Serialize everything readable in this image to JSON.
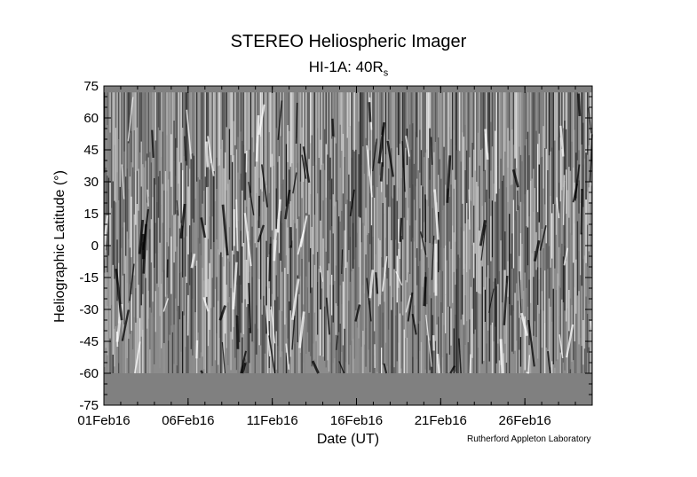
{
  "chart_data": {
    "type": "heatmap",
    "title": "STEREO Heliospheric Imager",
    "subtitle_main": "HI-1A: 40R",
    "subtitle_sub": "s",
    "xlabel": "Date (UT)",
    "ylabel": "Heliographic Latitude (°)",
    "x_tick_labels": [
      "01Feb16",
      "06Feb16",
      "11Feb16",
      "16Feb16",
      "21Feb16",
      "26Feb16"
    ],
    "x_tick_days": [
      0,
      5,
      10,
      15,
      20,
      25
    ],
    "xlim_days": [
      0,
      29
    ],
    "y_ticks": [
      75,
      60,
      45,
      30,
      15,
      0,
      -15,
      -30,
      -45,
      -60,
      -75
    ],
    "y_tick_labels": [
      "75",
      "60",
      "45",
      "30",
      "15",
      "0",
      "-15",
      "-30",
      "-45",
      "-60",
      "-75"
    ],
    "ylim": [
      -75,
      75
    ],
    "data_coverage_lat": [
      -60,
      72
    ],
    "colormap": "grayscale",
    "fill_color": "#808080",
    "credit": "Rutherford Appleton Laboratory"
  }
}
